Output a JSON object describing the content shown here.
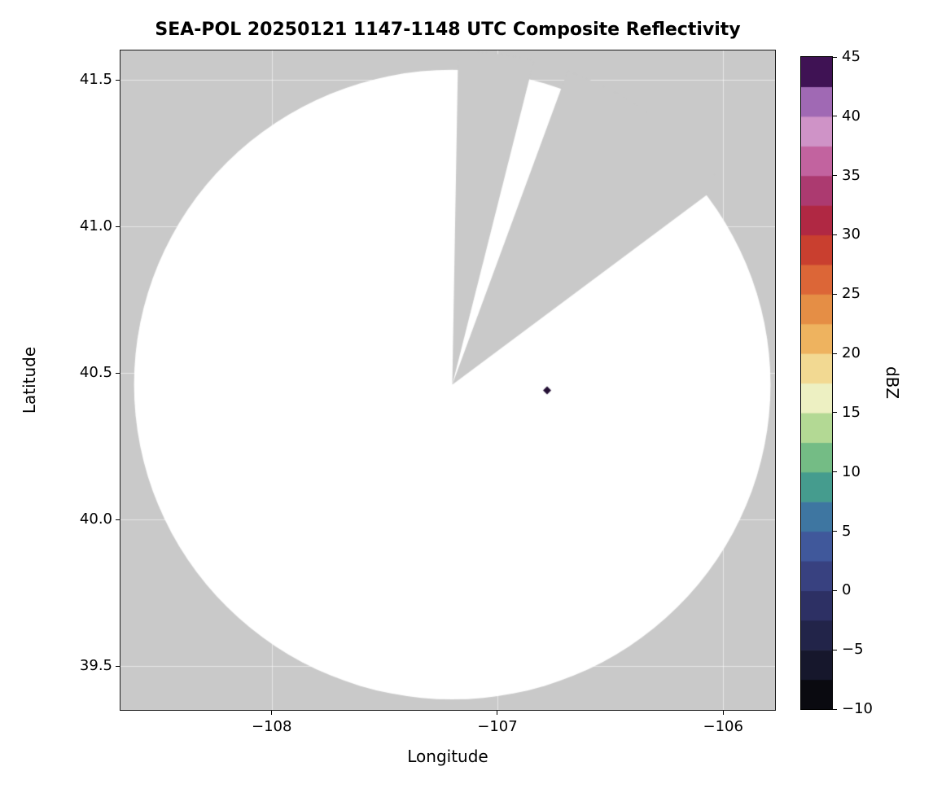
{
  "figure": {
    "background": "#ffffff"
  },
  "chart_data": {
    "type": "radar_coverage_map",
    "title": "SEA-POL 20250121 1147-1148 UTC Composite Reflectivity",
    "xlabel": "Longitude",
    "ylabel": "Latitude",
    "xlim": [
      -108.67,
      -105.77
    ],
    "ylim": [
      39.35,
      41.6
    ],
    "xticks": [
      {
        "value": -108,
        "label": "−108"
      },
      {
        "value": -107,
        "label": "−107"
      },
      {
        "value": -106,
        "label": "−106"
      }
    ],
    "yticks": [
      {
        "value": 41.5,
        "label": "41.5"
      },
      {
        "value": 41.0,
        "label": "41.0"
      },
      {
        "value": 40.5,
        "label": "40.5"
      },
      {
        "value": 40.0,
        "label": "40.0"
      },
      {
        "value": 39.5,
        "label": "39.5"
      }
    ],
    "grid": true,
    "grid_color": "rgba(255,255,255,0.55)",
    "background_color": "#c9c9c9",
    "coverage": {
      "description": "radar scan disc (reflectivity below minimum of color scale shown white); gray sectors are beam-blocked / no data",
      "center_lon": -107.2,
      "center_lat": 40.46,
      "radius_lon_deg": 1.41,
      "radius_lat_deg": 1.074,
      "fill_color": "#ffffff",
      "blocked_sectors_deg_from_north": [
        {
          "start": 1,
          "end": 14
        },
        {
          "start": 20,
          "end": 53
        }
      ]
    },
    "echoes": [
      {
        "lon": -106.78,
        "lat": 40.44,
        "dbz": 45,
        "color": "#241035",
        "marker": "diamond"
      }
    ],
    "colorbar": {
      "label": "dBZ",
      "min": -10,
      "max": 45,
      "ticks": [
        {
          "value": 45,
          "label": "45"
        },
        {
          "value": 40,
          "label": "40"
        },
        {
          "value": 35,
          "label": "35"
        },
        {
          "value": 30,
          "label": "30"
        },
        {
          "value": 25,
          "label": "25"
        },
        {
          "value": 20,
          "label": "20"
        },
        {
          "value": 15,
          "label": "15"
        },
        {
          "value": 10,
          "label": "10"
        },
        {
          "value": 5,
          "label": "5"
        },
        {
          "value": 0,
          "label": "0"
        },
        {
          "value": -5,
          "label": "−5"
        },
        {
          "value": -10,
          "label": "−10"
        }
      ],
      "stops": [
        [
          -10.0,
          "#000000"
        ],
        [
          -7.5,
          "#0a0a10"
        ],
        [
          -5.0,
          "#16172c"
        ],
        [
          -2.5,
          "#222449"
        ],
        [
          0.0,
          "#2d3064"
        ],
        [
          2.5,
          "#384180"
        ],
        [
          5.0,
          "#40589b"
        ],
        [
          7.5,
          "#3e76a1"
        ],
        [
          10.0,
          "#459c8e"
        ],
        [
          12.5,
          "#74bc85"
        ],
        [
          15.0,
          "#b3d994"
        ],
        [
          17.5,
          "#edf0c2"
        ],
        [
          20.0,
          "#f2d992"
        ],
        [
          22.5,
          "#eeb35f"
        ],
        [
          25.0,
          "#e58e45"
        ],
        [
          27.5,
          "#dc6637"
        ],
        [
          30.0,
          "#c93f2f"
        ],
        [
          32.5,
          "#b02843"
        ],
        [
          35.0,
          "#ac3a70"
        ],
        [
          37.5,
          "#c2639f"
        ],
        [
          40.0,
          "#cf93c7"
        ],
        [
          42.5,
          "#a069b4"
        ],
        [
          45.0,
          "#3f1254"
        ]
      ]
    }
  }
}
